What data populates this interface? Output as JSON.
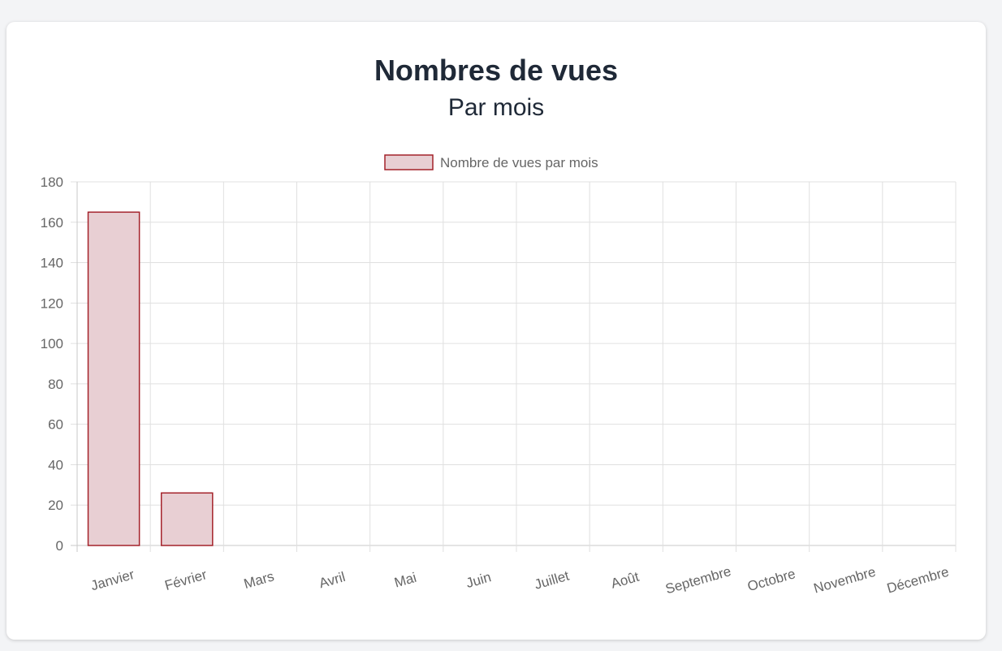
{
  "colors": {
    "title": "#1f2937",
    "tick": "#666666",
    "grid": "#e0e0e0",
    "bar_fill": "#e8cfd3",
    "bar_border": "#a4222a"
  },
  "chart_data": {
    "type": "bar",
    "title": "Nombres de vues",
    "subtitle": "Par mois",
    "categories": [
      "Janvier",
      "Février",
      "Mars",
      "Avril",
      "Mai",
      "Juin",
      "Juillet",
      "Août",
      "Septembre",
      "Octobre",
      "Novembre",
      "Décembre"
    ],
    "series": [
      {
        "name": "Nombre de vues par mois",
        "values": [
          165,
          26,
          0,
          0,
          0,
          0,
          0,
          0,
          0,
          0,
          0,
          0
        ]
      }
    ],
    "ylim": [
      0,
      180
    ],
    "yticks": [
      0,
      20,
      40,
      60,
      80,
      100,
      120,
      140,
      160,
      180
    ],
    "grid": true,
    "legend": "top-center"
  }
}
